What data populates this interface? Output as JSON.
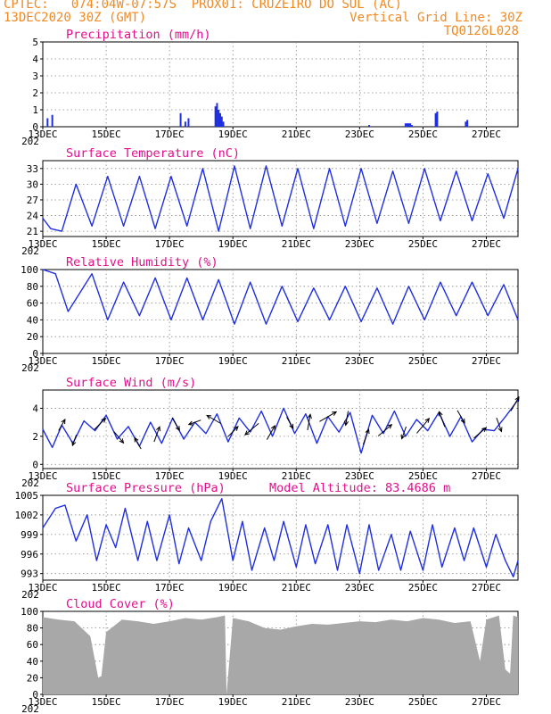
{
  "header": {
    "source": "CPTEC:",
    "coords": "074:04W-07:57S",
    "location": "PROX01: CRUZEIRO DO SUL (AC)",
    "run": "13DEC2020 30Z (GMT)",
    "grid_note": "Vertical Grid Line: 30Z",
    "code": "TQ0126L028"
  },
  "colors": {
    "header": "#f08a24",
    "title": "#e0108c",
    "series": "#1f2fe0",
    "cloud": "#a8a8a8",
    "grid": "#888888"
  },
  "x_axis": {
    "range": [
      0,
      15
    ],
    "tick_labels": [
      "13DEC",
      "15DEC",
      "17DEC",
      "19DEC",
      "21DEC",
      "23DEC",
      "25DEC",
      "27DEC"
    ],
    "tick_days": [
      0,
      2,
      4,
      6,
      8,
      10,
      12,
      14
    ],
    "year_label_fragment": "202"
  },
  "chart_data": [
    {
      "type": "bar",
      "title": "Precipitation (mm/h)",
      "ylim": [
        0,
        5
      ],
      "yticks": [
        0,
        1,
        2,
        3,
        4,
        5
      ],
      "x": [
        0.15,
        0.3,
        4.35,
        4.5,
        4.6,
        5.45,
        5.5,
        5.55,
        5.6,
        5.65,
        5.7,
        10.3,
        11.45,
        11.5,
        11.55,
        11.6,
        11.65,
        12.4,
        12.45,
        13.35,
        13.4
      ],
      "values": [
        0.5,
        0.7,
        0.8,
        0.3,
        0.5,
        1.2,
        1.4,
        1.0,
        0.8,
        0.6,
        0.3,
        0.1,
        0.2,
        0.2,
        0.2,
        0.2,
        0.1,
        0.8,
        0.9,
        0.3,
        0.4
      ]
    },
    {
      "type": "line",
      "title": "Surface Temperature (nC)",
      "ylim": [
        20,
        34.5
      ],
      "yticks": [
        21,
        24,
        27,
        30,
        33
      ],
      "x": [
        0.0,
        0.25,
        0.6,
        1.05,
        1.55,
        2.05,
        2.55,
        3.05,
        3.55,
        4.05,
        4.55,
        5.05,
        5.55,
        6.05,
        6.55,
        7.05,
        7.55,
        8.05,
        8.55,
        9.05,
        9.55,
        10.05,
        10.55,
        11.05,
        11.55,
        12.05,
        12.55,
        13.05,
        13.55,
        14.05,
        14.55,
        15.0
      ],
      "values": [
        23.5,
        21.5,
        21.0,
        30.0,
        22.0,
        31.5,
        22.0,
        31.5,
        21.5,
        31.5,
        22.0,
        33.0,
        21.0,
        33.5,
        21.5,
        33.5,
        22.0,
        33.0,
        21.5,
        33.0,
        22.0,
        33.0,
        22.5,
        32.5,
        22.5,
        33.0,
        23.0,
        32.5,
        23.0,
        32.0,
        23.5,
        33.0
      ]
    },
    {
      "type": "line",
      "title": "Relative Humidity (%)",
      "ylim": [
        0,
        100
      ],
      "yticks": [
        0,
        20,
        40,
        60,
        80,
        100
      ],
      "x": [
        0.0,
        0.4,
        0.8,
        1.55,
        2.05,
        2.55,
        3.05,
        3.55,
        4.05,
        4.55,
        5.05,
        5.55,
        6.05,
        6.55,
        7.05,
        7.55,
        8.05,
        8.55,
        9.05,
        9.55,
        10.05,
        10.55,
        11.05,
        11.55,
        12.05,
        12.55,
        13.05,
        13.55,
        14.05,
        14.55,
        15.0
      ],
      "values": [
        100,
        95,
        50,
        95,
        40,
        85,
        45,
        90,
        40,
        90,
        40,
        88,
        35,
        85,
        35,
        80,
        38,
        78,
        40,
        80,
        38,
        78,
        35,
        80,
        40,
        85,
        45,
        85,
        45,
        82,
        40
      ]
    },
    {
      "type": "line",
      "title": "Surface Wind (m/s)",
      "ylim": [
        -0.3,
        5.3
      ],
      "yticks": [
        0,
        2,
        4
      ],
      "x": [
        0.0,
        0.3,
        0.6,
        0.95,
        1.3,
        1.65,
        2.0,
        2.35,
        2.7,
        3.05,
        3.4,
        3.75,
        4.1,
        4.45,
        4.8,
        5.15,
        5.5,
        5.85,
        6.2,
        6.55,
        6.9,
        7.25,
        7.6,
        7.95,
        8.3,
        8.65,
        9.0,
        9.35,
        9.7,
        10.05,
        10.4,
        10.75,
        11.1,
        11.45,
        11.8,
        12.15,
        12.5,
        12.85,
        13.2,
        13.55,
        13.9,
        14.25,
        14.6,
        15.0
      ],
      "values": [
        2.5,
        1.2,
        2.8,
        1.5,
        3.1,
        2.4,
        3.5,
        1.8,
        2.7,
        1.3,
        3.0,
        1.5,
        3.3,
        1.8,
        3.0,
        2.2,
        3.6,
        1.6,
        3.3,
        2.3,
        3.8,
        2.0,
        4.0,
        2.2,
        3.6,
        1.5,
        3.4,
        2.3,
        3.7,
        0.8,
        3.5,
        2.2,
        3.8,
        2.0,
        3.2,
        2.4,
        3.7,
        2.0,
        3.4,
        1.6,
        2.5,
        2.4,
        3.4,
        4.6
      ],
      "arrows_x": [
        0.6,
        1.0,
        1.8,
        2.4,
        3.0,
        3.6,
        4.2,
        4.8,
        5.4,
        6.0,
        6.6,
        7.2,
        7.8,
        8.4,
        9.0,
        9.6,
        10.2,
        10.8,
        11.4,
        12.0,
        12.6,
        13.2,
        13.8,
        14.4,
        14.9
      ],
      "arrow_dir_deg": [
        60,
        250,
        45,
        310,
        120,
        70,
        300,
        200,
        150,
        45,
        220,
        60,
        300,
        80,
        30,
        260,
        70,
        40,
        250,
        50,
        110,
        300,
        40,
        290,
        60
      ],
      "arrow_len": [
        0.8,
        0.7,
        1.0,
        0.9,
        0.8,
        1.0,
        0.9,
        0.8,
        1.0,
        0.9,
        1.1,
        1.0,
        0.8,
        1.0,
        1.2,
        0.9,
        1.0,
        1.1,
        0.8,
        1.2,
        1.0,
        0.9,
        1.0,
        0.9,
        1.0
      ]
    },
    {
      "type": "line",
      "title": "Surface Pressure (hPa)",
      "annotation": "Model Altitude: 83.4686 m",
      "ylim": [
        992,
        1005
      ],
      "yticks": [
        993,
        996,
        999,
        1002,
        1005
      ],
      "x": [
        0.0,
        0.4,
        0.7,
        1.05,
        1.4,
        1.7,
        2.0,
        2.3,
        2.6,
        3.0,
        3.3,
        3.6,
        4.0,
        4.3,
        4.6,
        5.0,
        5.3,
        5.65,
        6.0,
        6.3,
        6.6,
        7.0,
        7.3,
        7.6,
        8.0,
        8.3,
        8.6,
        9.0,
        9.3,
        9.6,
        10.0,
        10.3,
        10.6,
        11.0,
        11.3,
        11.6,
        12.0,
        12.3,
        12.6,
        13.0,
        13.3,
        13.6,
        14.0,
        14.3,
        14.6,
        14.85,
        15.0
      ],
      "values": [
        1000.0,
        1003.0,
        1003.5,
        998.0,
        1002.0,
        995.0,
        1000.5,
        997.0,
        1003.0,
        995.0,
        1001.0,
        995.0,
        1002.0,
        994.5,
        1000.0,
        995.0,
        1001.0,
        1004.5,
        995.0,
        1001.0,
        993.5,
        1000.0,
        995.0,
        1001.0,
        994.0,
        1000.5,
        994.5,
        1000.5,
        993.5,
        1000.5,
        993.0,
        1000.5,
        993.5,
        999.0,
        993.5,
        999.5,
        993.5,
        1000.5,
        994.0,
        1000.0,
        995.0,
        1000.0,
        994.0,
        999.0,
        995.0,
        992.5,
        995.0
      ]
    },
    {
      "type": "area",
      "title": "Cloud Cover (%)",
      "ylim": [
        0,
        100
      ],
      "yticks": [
        0,
        20,
        40,
        60,
        80,
        100
      ],
      "x": [
        0.0,
        0.5,
        1.0,
        1.5,
        1.75,
        1.85,
        2.0,
        2.5,
        3.0,
        3.5,
        4.0,
        4.5,
        5.0,
        5.5,
        5.75,
        5.8,
        6.0,
        6.5,
        7.0,
        7.5,
        8.0,
        8.5,
        9.0,
        9.5,
        10.0,
        10.5,
        11.0,
        11.5,
        12.0,
        12.5,
        13.0,
        13.5,
        13.8,
        14.0,
        14.4,
        14.6,
        14.75,
        14.85,
        15.0
      ],
      "values": [
        93,
        90,
        88,
        70,
        20,
        22,
        75,
        90,
        88,
        85,
        88,
        92,
        90,
        93,
        95,
        0,
        92,
        88,
        80,
        78,
        82,
        85,
        84,
        86,
        88,
        87,
        90,
        88,
        92,
        90,
        86,
        88,
        40,
        90,
        95,
        30,
        25,
        95,
        93
      ]
    }
  ]
}
